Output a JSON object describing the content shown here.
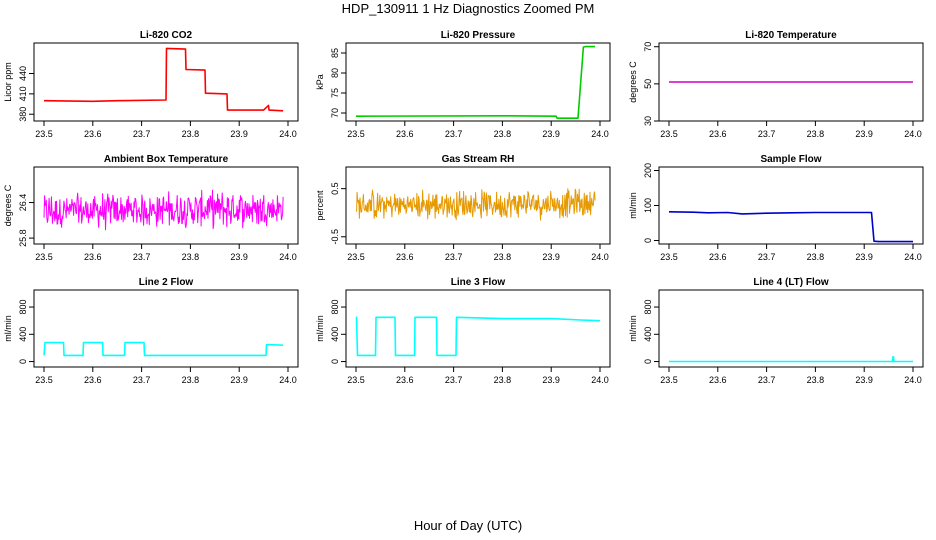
{
  "figure": {
    "title": "HDP_130911  1 Hz Diagnostics Zoomed PM",
    "xlabel": "Hour of Day (UTC)"
  },
  "chart_data": [
    {
      "type": "line",
      "title": "Li-820 CO2",
      "ylabel": "Licor ppm",
      "color": "#ff0000",
      "xlim": [
        23.5,
        24.0
      ],
      "xticks": [
        "23.5",
        "23.6",
        "23.7",
        "23.8",
        "23.9",
        "24.0"
      ],
      "ylim": [
        370,
        485
      ],
      "yticks": [
        380,
        410,
        440
      ],
      "series": [
        {
          "x": [
            23.5,
            23.6,
            23.65,
            23.75,
            23.751,
            23.79,
            23.791,
            23.83,
            23.831,
            23.875,
            23.876,
            23.95,
            23.96,
            23.961,
            23.99
          ],
          "y": [
            400,
            399,
            400,
            401,
            477,
            476,
            446,
            445,
            411,
            410,
            386,
            386,
            393,
            386,
            385
          ]
        }
      ]
    },
    {
      "type": "line",
      "title": "Li-820 Pressure",
      "ylabel": "kPa",
      "color": "#00cc00",
      "xlim": [
        23.5,
        24.0
      ],
      "xticks": [
        "23.5",
        "23.6",
        "23.7",
        "23.8",
        "23.9",
        "24.0"
      ],
      "ylim": [
        68,
        87.5
      ],
      "yticks": [
        70,
        75,
        80,
        85
      ],
      "series": [
        {
          "x": [
            23.5,
            23.8,
            23.91,
            23.912,
            23.955,
            23.96,
            23.966,
            23.97,
            23.99
          ],
          "y": [
            69.2,
            69.3,
            69.2,
            68.7,
            68.7,
            77,
            86.5,
            86.6,
            86.6
          ]
        }
      ]
    },
    {
      "type": "line",
      "title": "Li-820 Temperature",
      "ylabel": "degrees C",
      "color": "#cc00cc",
      "xlim": [
        23.5,
        24.0
      ],
      "xticks": [
        "23.5",
        "23.6",
        "23.7",
        "23.8",
        "23.9",
        "24.0"
      ],
      "ylim": [
        30,
        72
      ],
      "yticks": [
        30,
        50,
        70
      ],
      "series": [
        {
          "x": [
            23.5,
            24.0
          ],
          "y": [
            51,
            51
          ]
        }
      ]
    },
    {
      "type": "line",
      "title": "Ambient Box Temperature",
      "ylabel": "degrees C",
      "color": "#ff00ff",
      "noise": "uniform",
      "noise_amp": 0.35,
      "xlim": [
        23.5,
        24.0
      ],
      "xticks": [
        "23.5",
        "23.6",
        "23.7",
        "23.8",
        "23.9",
        "24.0"
      ],
      "ylim": [
        25.7,
        27.0
      ],
      "yticks": [
        25.8,
        26.4
      ],
      "series": [
        {
          "x": [
            23.5,
            23.99
          ],
          "y": [
            26.25,
            26.3
          ]
        }
      ]
    },
    {
      "type": "line",
      "title": "Gas Stream RH",
      "ylabel": "percent",
      "color": "#e69900",
      "noise": "uniform",
      "noise_amp": 0.35,
      "xlim": [
        23.5,
        24.0
      ],
      "xticks": [
        "23.5",
        "23.6",
        "23.7",
        "23.8",
        "23.9",
        "24.0"
      ],
      "ylim": [
        -0.65,
        0.95
      ],
      "yticks": [
        -0.5,
        0.5
      ],
      "series": [
        {
          "x": [
            23.5,
            23.99
          ],
          "y": [
            0.15,
            0.2
          ]
        }
      ]
    },
    {
      "type": "line",
      "title": "Sample Flow",
      "ylabel": "ml/min",
      "color": "#0000cc",
      "xlim": [
        23.5,
        24.0
      ],
      "xticks": [
        "23.5",
        "23.6",
        "23.7",
        "23.8",
        "23.9",
        "24.0"
      ],
      "ylim": [
        -10,
        210
      ],
      "yticks": [
        0,
        100,
        200
      ],
      "series": [
        {
          "x": [
            23.5,
            23.55,
            23.58,
            23.62,
            23.65,
            23.7,
            23.75,
            23.8,
            23.85,
            23.915,
            23.92,
            23.93,
            24.0
          ],
          "y": [
            82,
            81,
            79,
            80,
            76,
            78,
            79,
            80,
            80,
            80,
            -2,
            -3,
            -3
          ]
        }
      ]
    },
    {
      "type": "line",
      "title": "Line 2 Flow",
      "ylabel": "ml/min",
      "color": "#00ffff",
      "xlim": [
        23.5,
        24.0
      ],
      "xticks": [
        "23.5",
        "23.6",
        "23.7",
        "23.8",
        "23.9",
        "24.0"
      ],
      "ylim": [
        -80,
        1050
      ],
      "yticks": [
        0,
        400,
        800
      ],
      "series": [
        {
          "x": [
            23.5,
            23.502,
            23.54,
            23.541,
            23.58,
            23.581,
            23.62,
            23.621,
            23.665,
            23.666,
            23.705,
            23.706,
            23.955,
            23.956,
            23.99
          ],
          "y": [
            90,
            280,
            280,
            90,
            90,
            280,
            280,
            90,
            90,
            280,
            280,
            90,
            90,
            250,
            240
          ]
        }
      ]
    },
    {
      "type": "line",
      "title": "Line 3 Flow",
      "ylabel": "ml/min",
      "color": "#00ffff",
      "xlim": [
        23.5,
        24.0
      ],
      "xticks": [
        "23.5",
        "23.6",
        "23.7",
        "23.8",
        "23.9",
        "24.0"
      ],
      "ylim": [
        -80,
        1050
      ],
      "yticks": [
        0,
        400,
        800
      ],
      "series": [
        {
          "x": [
            23.5,
            23.501,
            23.503,
            23.54,
            23.541,
            23.58,
            23.581,
            23.62,
            23.621,
            23.665,
            23.666,
            23.705,
            23.706,
            23.8,
            23.9,
            23.96,
            24.0
          ],
          "y": [
            650,
            650,
            90,
            90,
            650,
            650,
            90,
            90,
            650,
            650,
            90,
            90,
            650,
            630,
            630,
            610,
            600
          ]
        }
      ]
    },
    {
      "type": "line",
      "title": "Line 4 (LT) Flow",
      "ylabel": "ml/min",
      "color": "#00ffff",
      "xlim": [
        23.5,
        24.0
      ],
      "xticks": [
        "23.5",
        "23.6",
        "23.7",
        "23.8",
        "23.9",
        "24.0"
      ],
      "ylim": [
        -80,
        1050
      ],
      "yticks": [
        0,
        400,
        800
      ],
      "series": [
        {
          "x": [
            23.5,
            23.958,
            23.959,
            23.96,
            23.961,
            24.0
          ],
          "y": [
            0,
            0,
            70,
            70,
            0,
            0
          ]
        }
      ]
    }
  ]
}
